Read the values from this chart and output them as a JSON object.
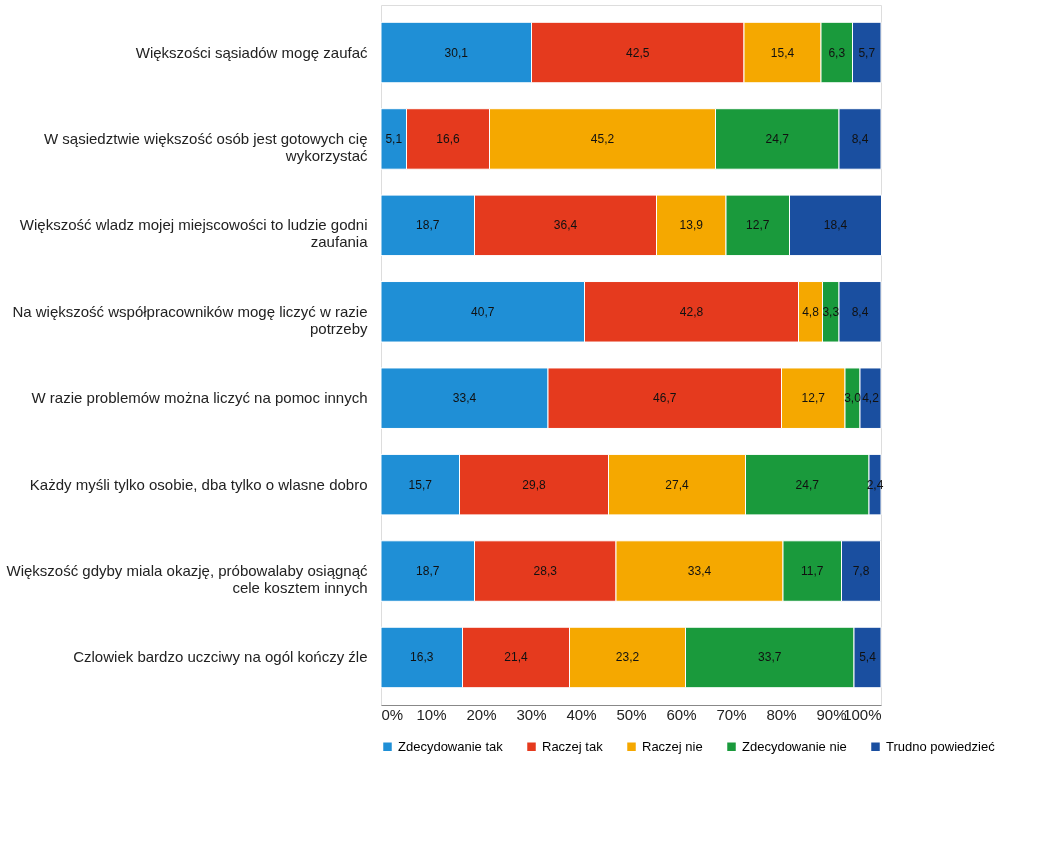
{
  "chart_data": {
    "type": "bar",
    "orientation": "horizontal",
    "stacked": true,
    "categories": [
      "Większości sąsiadów mogę zaufać",
      "W sąsiedztwie większość osób jest gotowych cię wykorzystać",
      "Większość wladz mojej miejscowości to ludzie godni zaufania",
      "Na większość współpracowników mogę liczyć w razie potrzeby",
      "W razie problemów można liczyć na pomoc innych",
      "Każdy myśli tylko osobie, dba tylko o wlasne dobro",
      "Większość gdyby miala okazję, próbowalaby osiągnąć cele kosztem innych",
      "Czlowiek bardzo uczciwy na ogól kończy źle"
    ],
    "series": [
      {
        "name": "Zdecydowanie tak",
        "color": "#1f8fd6",
        "values": [
          30.1,
          5.1,
          18.7,
          40.7,
          33.4,
          15.7,
          18.7,
          16.3
        ],
        "value_labels": [
          "30,1",
          "5,1",
          "18,7",
          "40,7",
          "33,4",
          "15,7",
          "18,7",
          "16,3"
        ]
      },
      {
        "name": "Raczej tak",
        "color": "#e53a1e",
        "values": [
          42.5,
          16.6,
          36.4,
          42.8,
          46.7,
          29.8,
          28.3,
          21.4
        ],
        "value_labels": [
          "42,5",
          "16,6",
          "36,4",
          "42,8",
          "46,7",
          "29,8",
          "28,3",
          "21,4"
        ]
      },
      {
        "name": "Raczej nie",
        "color": "#f5a800",
        "values": [
          15.4,
          45.2,
          13.9,
          4.8,
          12.7,
          27.4,
          33.4,
          23.2
        ],
        "value_labels": [
          "15,4",
          "45,2",
          "13,9",
          "4,8",
          "12,7",
          "27,4",
          "33,4",
          "23,2"
        ]
      },
      {
        "name": "Zdecydowanie nie",
        "color": "#1a9a3c",
        "values": [
          6.3,
          24.7,
          12.7,
          3.3,
          3.0,
          24.7,
          11.7,
          33.7
        ],
        "value_labels": [
          "6,3",
          "24,7",
          "12,7",
          "3,3",
          "3,0",
          "24,7",
          "11,7",
          "33,7"
        ]
      },
      {
        "name": "Trudno powiedzieć",
        "color": "#1a4fa0",
        "values": [
          5.7,
          8.4,
          18.4,
          8.4,
          4.2,
          2.4,
          7.8,
          5.4
        ],
        "value_labels": [
          "5,7",
          "8,4",
          "18,4",
          "8,4",
          "4,2",
          "2,4",
          "7,8",
          "5,4"
        ]
      }
    ],
    "xlim": [
      0,
      100
    ],
    "xticks": [
      {
        "value": 0,
        "label": "0%"
      },
      {
        "value": 10,
        "label": "10%"
      },
      {
        "value": 20,
        "label": "20%"
      },
      {
        "value": 30,
        "label": "30%"
      },
      {
        "value": 40,
        "label": "40%"
      },
      {
        "value": 50,
        "label": "50%"
      },
      {
        "value": 60,
        "label": "60%"
      },
      {
        "value": 70,
        "label": "70%"
      },
      {
        "value": 80,
        "label": "80%"
      },
      {
        "value": 90,
        "label": "90%"
      },
      {
        "value": 100,
        "label": "100%"
      }
    ],
    "grid": false,
    "legend": "bottom"
  }
}
